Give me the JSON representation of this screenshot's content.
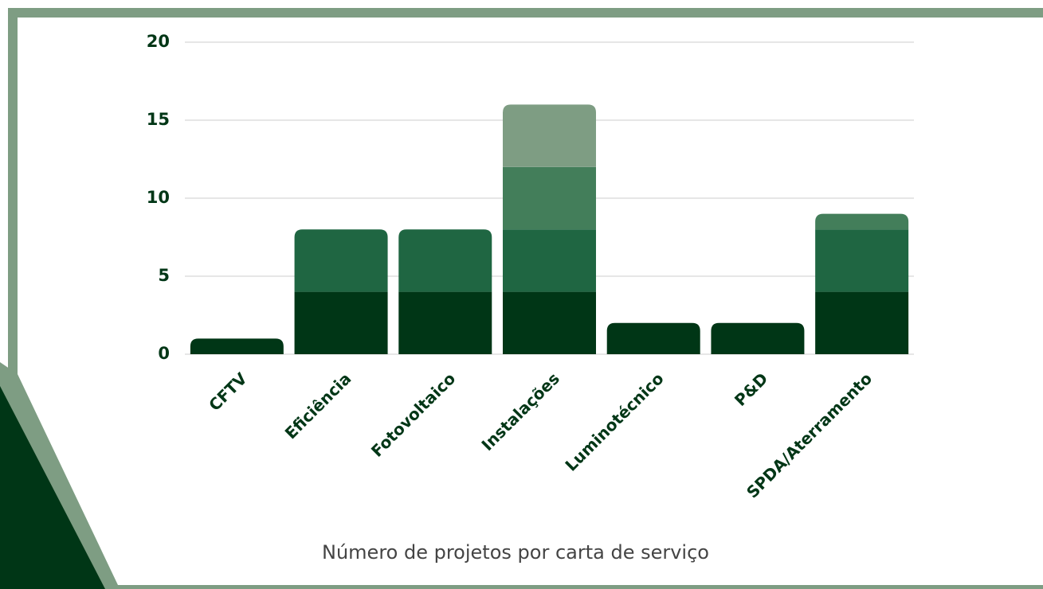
{
  "chart_data": {
    "type": "stacked_bar",
    "title": "Número de projetos por carta de serviço",
    "categories": [
      "CFTV",
      "Eficiência",
      "Fotovoltaico",
      "Instalações",
      "Luminotécnico",
      "P&D",
      "SPDA/Aterramento"
    ],
    "series": [
      {
        "color": "#003616",
        "values": [
          1,
          4,
          4,
          4,
          2,
          2,
          4
        ]
      },
      {
        "color": "#1f6642",
        "values": [
          0,
          4,
          4,
          4,
          0,
          0,
          4
        ]
      },
      {
        "color": "#437e5a",
        "values": [
          0,
          0,
          0,
          4,
          0,
          0,
          1
        ]
      },
      {
        "color": "#7e9d83",
        "values": [
          0,
          0,
          0,
          4,
          0,
          0,
          0
        ]
      }
    ],
    "ylim": [
      0,
      20
    ],
    "yticks": [
      0,
      5,
      10,
      15,
      20
    ],
    "grid": true
  }
}
